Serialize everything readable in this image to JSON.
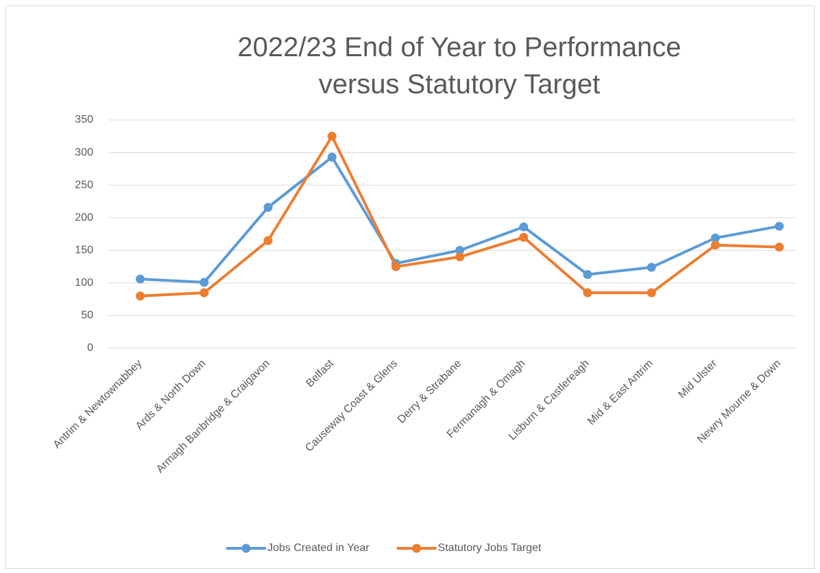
{
  "chart_data": {
    "type": "line",
    "title": "2022/23 End of Year to Performance versus Statutory Target",
    "categories": [
      "Antrim & Newtownabbey",
      "Ards & North Down",
      "Armagh Banbridge & Craigavon",
      "Belfast",
      "Causeway Coast & Glens",
      "Derry & Strabane",
      "Fermanagh & Omagh",
      "Lisburn & Castlereagh",
      "Mid & East Antrim",
      "Mid Ulster",
      "Newry Mourne & Down"
    ],
    "series": [
      {
        "name": "Jobs Created in Year",
        "color": "#5b9bd5",
        "values": [
          106,
          101,
          216,
          293,
          130,
          150,
          186,
          113,
          124,
          169,
          187
        ]
      },
      {
        "name": "Statutory Jobs Target",
        "color": "#ed7d31",
        "values": [
          80,
          85,
          165,
          325,
          125,
          140,
          170,
          85,
          85,
          158,
          155
        ]
      }
    ],
    "ylim": [
      0,
      350
    ],
    "yticks": [
      0,
      50,
      100,
      150,
      200,
      250,
      300,
      350
    ],
    "grid": true,
    "legend": "bottom"
  }
}
